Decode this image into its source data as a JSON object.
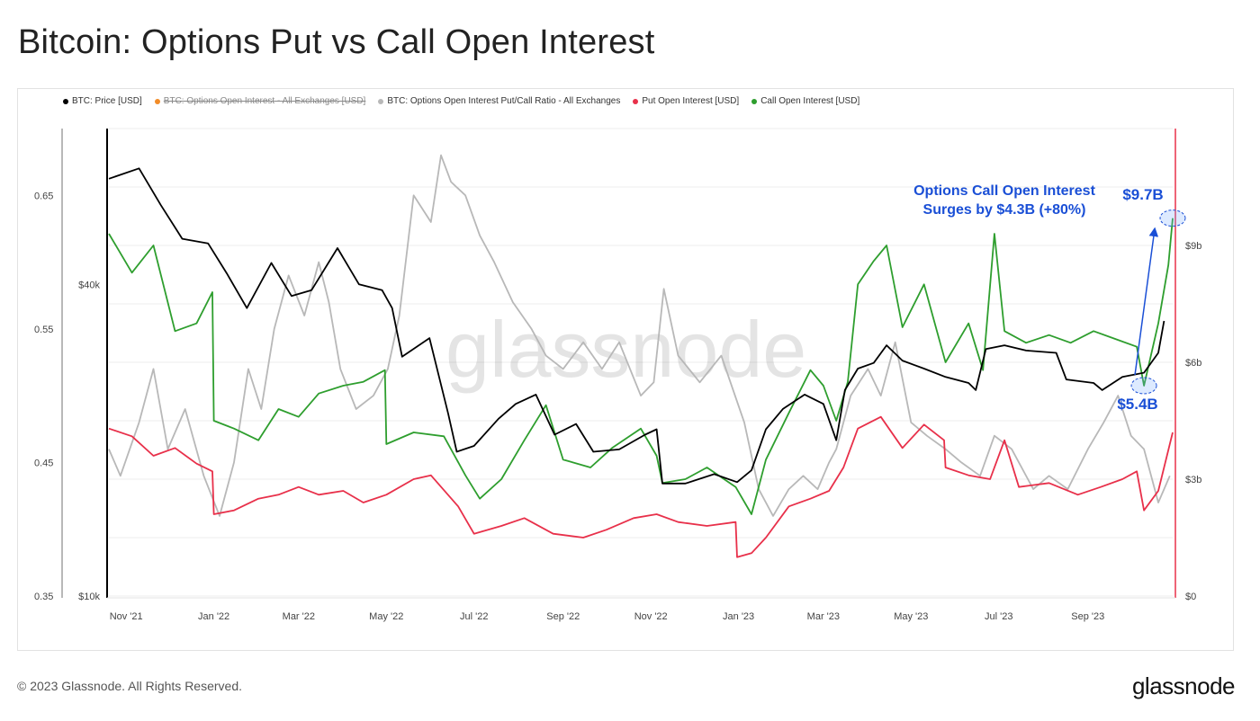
{
  "page": {
    "title": "Bitcoin: Options Put vs Call Open Interest",
    "footer_copyright": "© 2023 Glassnode. All Rights Reserved.",
    "footer_logo": "glassnode",
    "watermark": "glassnode"
  },
  "chart_data": {
    "type": "line",
    "legend": [
      {
        "label": "BTC: Price [USD]",
        "color": "#000000",
        "struck": false
      },
      {
        "label": "BTC: Options Open Interest - All Exchanges [USD]",
        "color": "#f28c28",
        "struck": true
      },
      {
        "label": "BTC: Options Open Interest Put/Call Ratio - All Exchanges",
        "color": "#b8b8b8",
        "struck": false
      },
      {
        "label": "Put Open Interest [USD]",
        "color": "#e8304a",
        "struck": false
      },
      {
        "label": "Call Open Interest [USD]",
        "color": "#2e9e2e",
        "struck": false
      }
    ],
    "x_ticks": [
      "Nov '21",
      "Jan '22",
      "Mar '22",
      "May '22",
      "Jul '22",
      "Sep '22",
      "Nov '22",
      "Jan '23",
      "Mar '23",
      "May '23",
      "Jul '23",
      "Sep '23"
    ],
    "x_range": [
      "2021-10-20",
      "2023-10-30"
    ],
    "ratio_axis": {
      "ticks": [
        "0.65",
        "0.55",
        "0.45",
        "0.35"
      ],
      "values": [
        0.65,
        0.55,
        0.45,
        0.35
      ],
      "range": [
        0.35,
        0.7
      ]
    },
    "price_axis": {
      "ticks": [
        "$40k",
        "$10k"
      ],
      "values": [
        40000,
        10000
      ],
      "scale": "log",
      "range": [
        10000,
        80000
      ]
    },
    "oi_axis": {
      "ticks": [
        "$9b",
        "$6b",
        "$3b",
        "$0"
      ],
      "values": [
        9,
        6,
        3,
        0
      ],
      "unit": "billion USD",
      "range": [
        0,
        12
      ]
    },
    "series": [
      {
        "name": "BTC: Price [USD]",
        "color": "#000000",
        "axis": "price",
        "points": [
          [
            "2021-10-20",
            64000
          ],
          [
            "2021-11-10",
            67000
          ],
          [
            "2021-11-25",
            57000
          ],
          [
            "2021-12-10",
            49000
          ],
          [
            "2021-12-28",
            48000
          ],
          [
            "2022-01-10",
            42000
          ],
          [
            "2022-01-24",
            36000
          ],
          [
            "2022-02-10",
            44000
          ],
          [
            "2022-02-24",
            38000
          ],
          [
            "2022-03-10",
            39000
          ],
          [
            "2022-03-28",
            47000
          ],
          [
            "2022-04-12",
            40000
          ],
          [
            "2022-04-28",
            39000
          ],
          [
            "2022-05-05",
            36000
          ],
          [
            "2022-05-12",
            29000
          ],
          [
            "2022-05-31",
            31500
          ],
          [
            "2022-06-13",
            22500
          ],
          [
            "2022-06-19",
            19000
          ],
          [
            "2022-07-01",
            19500
          ],
          [
            "2022-07-18",
            22000
          ],
          [
            "2022-07-30",
            23500
          ],
          [
            "2022-08-13",
            24500
          ],
          [
            "2022-08-26",
            20500
          ],
          [
            "2022-09-10",
            21500
          ],
          [
            "2022-09-22",
            19000
          ],
          [
            "2022-10-10",
            19200
          ],
          [
            "2022-10-28",
            20500
          ],
          [
            "2022-11-05",
            21000
          ],
          [
            "2022-11-09",
            16500
          ],
          [
            "2022-11-25",
            16500
          ],
          [
            "2022-12-15",
            17200
          ],
          [
            "2022-12-31",
            16600
          ],
          [
            "2023-01-10",
            17500
          ],
          [
            "2023-01-20",
            21000
          ],
          [
            "2023-02-01",
            23000
          ],
          [
            "2023-02-16",
            24500
          ],
          [
            "2023-03-01",
            23500
          ],
          [
            "2023-03-10",
            20000
          ],
          [
            "2023-03-16",
            25000
          ],
          [
            "2023-03-25",
            27500
          ],
          [
            "2023-04-05",
            28200
          ],
          [
            "2023-04-14",
            30500
          ],
          [
            "2023-04-25",
            28500
          ],
          [
            "2023-05-10",
            27500
          ],
          [
            "2023-05-25",
            26500
          ],
          [
            "2023-06-10",
            25800
          ],
          [
            "2023-06-15",
            25000
          ],
          [
            "2023-06-22",
            30000
          ],
          [
            "2023-07-05",
            30500
          ],
          [
            "2023-07-20",
            29800
          ],
          [
            "2023-08-10",
            29500
          ],
          [
            "2023-08-17",
            26200
          ],
          [
            "2023-09-05",
            25800
          ],
          [
            "2023-09-11",
            25000
          ],
          [
            "2023-09-25",
            26500
          ],
          [
            "2023-10-10",
            27000
          ],
          [
            "2023-10-20",
            29500
          ],
          [
            "2023-10-24",
            34000
          ]
        ]
      },
      {
        "name": "BTC: Options Open Interest Put/Call Ratio - All Exchanges",
        "color": "#b8b8b8",
        "axis": "ratio",
        "points": [
          [
            "2021-10-20",
            0.46
          ],
          [
            "2021-10-28",
            0.44
          ],
          [
            "2021-11-10",
            0.48
          ],
          [
            "2021-11-20",
            0.52
          ],
          [
            "2021-11-30",
            0.46
          ],
          [
            "2021-12-12",
            0.49
          ],
          [
            "2021-12-25",
            0.44
          ],
          [
            "2022-01-05",
            0.41
          ],
          [
            "2022-01-15",
            0.45
          ],
          [
            "2022-01-25",
            0.52
          ],
          [
            "2022-02-03",
            0.49
          ],
          [
            "2022-02-12",
            0.55
          ],
          [
            "2022-02-22",
            0.59
          ],
          [
            "2022-03-05",
            0.56
          ],
          [
            "2022-03-15",
            0.6
          ],
          [
            "2022-03-22",
            0.57
          ],
          [
            "2022-03-30",
            0.52
          ],
          [
            "2022-04-10",
            0.49
          ],
          [
            "2022-04-22",
            0.5
          ],
          [
            "2022-05-02",
            0.52
          ],
          [
            "2022-05-10",
            0.56
          ],
          [
            "2022-05-20",
            0.65
          ],
          [
            "2022-06-01",
            0.63
          ],
          [
            "2022-06-08",
            0.68
          ],
          [
            "2022-06-15",
            0.66
          ],
          [
            "2022-06-25",
            0.65
          ],
          [
            "2022-07-05",
            0.62
          ],
          [
            "2022-07-15",
            0.6
          ],
          [
            "2022-07-28",
            0.57
          ],
          [
            "2022-08-10",
            0.55
          ],
          [
            "2022-08-20",
            0.53
          ],
          [
            "2022-09-01",
            0.52
          ],
          [
            "2022-09-15",
            0.54
          ],
          [
            "2022-09-28",
            0.52
          ],
          [
            "2022-10-10",
            0.54
          ],
          [
            "2022-10-25",
            0.5
          ],
          [
            "2022-11-03",
            0.51
          ],
          [
            "2022-11-10",
            0.58
          ],
          [
            "2022-11-20",
            0.53
          ],
          [
            "2022-12-05",
            0.51
          ],
          [
            "2022-12-20",
            0.53
          ],
          [
            "2023-01-05",
            0.48
          ],
          [
            "2023-01-15",
            0.43
          ],
          [
            "2023-01-25",
            0.41
          ],
          [
            "2023-02-05",
            0.43
          ],
          [
            "2023-02-15",
            0.44
          ],
          [
            "2023-02-25",
            0.43
          ],
          [
            "2023-03-05",
            0.45
          ],
          [
            "2023-03-10",
            0.46
          ],
          [
            "2023-03-20",
            0.5
          ],
          [
            "2023-04-01",
            0.52
          ],
          [
            "2023-04-10",
            0.5
          ],
          [
            "2023-04-20",
            0.54
          ],
          [
            "2023-05-01",
            0.48
          ],
          [
            "2023-05-12",
            0.47
          ],
          [
            "2023-05-25",
            0.46
          ],
          [
            "2023-06-05",
            0.45
          ],
          [
            "2023-06-18",
            0.44
          ],
          [
            "2023-06-28",
            0.47
          ],
          [
            "2023-07-10",
            0.46
          ],
          [
            "2023-07-25",
            0.43
          ],
          [
            "2023-08-05",
            0.44
          ],
          [
            "2023-08-18",
            0.43
          ],
          [
            "2023-09-01",
            0.46
          ],
          [
            "2023-09-12",
            0.48
          ],
          [
            "2023-09-22",
            0.5
          ],
          [
            "2023-10-01",
            0.47
          ],
          [
            "2023-10-10",
            0.46
          ],
          [
            "2023-10-20",
            0.42
          ],
          [
            "2023-10-28",
            0.44
          ]
        ]
      },
      {
        "name": "Put Open Interest [USD]",
        "color": "#e8304a",
        "axis": "oi",
        "points": [
          [
            "2021-10-20",
            4.3
          ],
          [
            "2021-11-05",
            4.1
          ],
          [
            "2021-11-20",
            3.6
          ],
          [
            "2021-12-05",
            3.8
          ],
          [
            "2021-12-20",
            3.4
          ],
          [
            "2021-12-31",
            3.2
          ],
          [
            "2022-01-01",
            2.1
          ],
          [
            "2022-01-15",
            2.2
          ],
          [
            "2022-02-01",
            2.5
          ],
          [
            "2022-02-15",
            2.6
          ],
          [
            "2022-03-01",
            2.8
          ],
          [
            "2022-03-15",
            2.6
          ],
          [
            "2022-04-01",
            2.7
          ],
          [
            "2022-04-15",
            2.4
          ],
          [
            "2022-05-01",
            2.6
          ],
          [
            "2022-05-20",
            3.0
          ],
          [
            "2022-06-01",
            3.1
          ],
          [
            "2022-06-20",
            2.3
          ],
          [
            "2022-07-01",
            1.6
          ],
          [
            "2022-07-20",
            1.8
          ],
          [
            "2022-08-05",
            2.0
          ],
          [
            "2022-08-25",
            1.6
          ],
          [
            "2022-09-15",
            1.5
          ],
          [
            "2022-10-01",
            1.7
          ],
          [
            "2022-10-20",
            2.0
          ],
          [
            "2022-11-05",
            2.1
          ],
          [
            "2022-11-20",
            1.9
          ],
          [
            "2022-12-10",
            1.8
          ],
          [
            "2022-12-30",
            1.9
          ],
          [
            "2022-12-31",
            1.0
          ],
          [
            "2023-01-10",
            1.1
          ],
          [
            "2023-01-20",
            1.5
          ],
          [
            "2023-02-05",
            2.3
          ],
          [
            "2023-02-20",
            2.5
          ],
          [
            "2023-03-05",
            2.7
          ],
          [
            "2023-03-15",
            3.3
          ],
          [
            "2023-03-25",
            4.3
          ],
          [
            "2023-04-10",
            4.6
          ],
          [
            "2023-04-25",
            3.8
          ],
          [
            "2023-05-10",
            4.4
          ],
          [
            "2023-05-24",
            4.0
          ],
          [
            "2023-05-25",
            3.3
          ],
          [
            "2023-06-10",
            3.1
          ],
          [
            "2023-06-25",
            3.0
          ],
          [
            "2023-07-05",
            4.0
          ],
          [
            "2023-07-15",
            2.8
          ],
          [
            "2023-08-05",
            2.9
          ],
          [
            "2023-08-25",
            2.6
          ],
          [
            "2023-09-10",
            2.8
          ],
          [
            "2023-09-25",
            3.0
          ],
          [
            "2023-10-05",
            3.2
          ],
          [
            "2023-10-10",
            2.2
          ],
          [
            "2023-10-20",
            2.7
          ],
          [
            "2023-10-30",
            4.2
          ]
        ]
      },
      {
        "name": "Call Open Interest [USD]",
        "color": "#2e9e2e",
        "axis": "oi",
        "points": [
          [
            "2021-10-20",
            9.3
          ],
          [
            "2021-11-05",
            8.3
          ],
          [
            "2021-11-20",
            9.0
          ],
          [
            "2021-12-05",
            6.8
          ],
          [
            "2021-12-20",
            7.0
          ],
          [
            "2021-12-31",
            7.8
          ],
          [
            "2022-01-01",
            4.5
          ],
          [
            "2022-01-15",
            4.3
          ],
          [
            "2022-02-01",
            4.0
          ],
          [
            "2022-02-15",
            4.8
          ],
          [
            "2022-03-01",
            4.6
          ],
          [
            "2022-03-15",
            5.2
          ],
          [
            "2022-04-01",
            5.4
          ],
          [
            "2022-04-15",
            5.5
          ],
          [
            "2022-04-30",
            5.8
          ],
          [
            "2022-05-01",
            3.9
          ],
          [
            "2022-05-20",
            4.2
          ],
          [
            "2022-06-10",
            4.1
          ],
          [
            "2022-06-25",
            3.1
          ],
          [
            "2022-07-05",
            2.5
          ],
          [
            "2022-07-20",
            3.0
          ],
          [
            "2022-08-05",
            4.0
          ],
          [
            "2022-08-20",
            4.9
          ],
          [
            "2022-09-01",
            3.5
          ],
          [
            "2022-09-20",
            3.3
          ],
          [
            "2022-10-05",
            3.8
          ],
          [
            "2022-10-25",
            4.3
          ],
          [
            "2022-11-05",
            3.6
          ],
          [
            "2022-11-09",
            2.9
          ],
          [
            "2022-11-25",
            3.0
          ],
          [
            "2022-12-10",
            3.3
          ],
          [
            "2022-12-30",
            2.8
          ],
          [
            "2023-01-10",
            2.1
          ],
          [
            "2023-01-20",
            3.5
          ],
          [
            "2023-02-05",
            4.7
          ],
          [
            "2023-02-20",
            5.8
          ],
          [
            "2023-03-01",
            5.4
          ],
          [
            "2023-03-10",
            4.5
          ],
          [
            "2023-03-18",
            5.5
          ],
          [
            "2023-03-25",
            8.0
          ],
          [
            "2023-04-05",
            8.6
          ],
          [
            "2023-04-14",
            9.0
          ],
          [
            "2023-04-25",
            6.9
          ],
          [
            "2023-05-10",
            8.0
          ],
          [
            "2023-05-25",
            6.0
          ],
          [
            "2023-06-10",
            7.0
          ],
          [
            "2023-06-20",
            5.8
          ],
          [
            "2023-06-28",
            9.3
          ],
          [
            "2023-07-05",
            6.8
          ],
          [
            "2023-07-20",
            6.5
          ],
          [
            "2023-08-05",
            6.7
          ],
          [
            "2023-08-20",
            6.5
          ],
          [
            "2023-09-05",
            6.8
          ],
          [
            "2023-09-20",
            6.6
          ],
          [
            "2023-10-05",
            6.4
          ],
          [
            "2023-10-10",
            5.4
          ],
          [
            "2023-10-20",
            7.0
          ],
          [
            "2023-10-27",
            8.5
          ],
          [
            "2023-10-30",
            9.7
          ]
        ]
      }
    ],
    "annotations": {
      "headline_line1": "Options Call Open Interest",
      "headline_line2": "Surges by $4.3B (+80%)",
      "end_label": "$9.7B",
      "start_label": "$5.4B",
      "start_point": [
        "2023-10-10",
        5.4
      ],
      "end_point": [
        "2023-10-30",
        9.7
      ],
      "color": "#1a4fd6"
    },
    "grid": "horizontal",
    "legend_position": "top-left"
  }
}
